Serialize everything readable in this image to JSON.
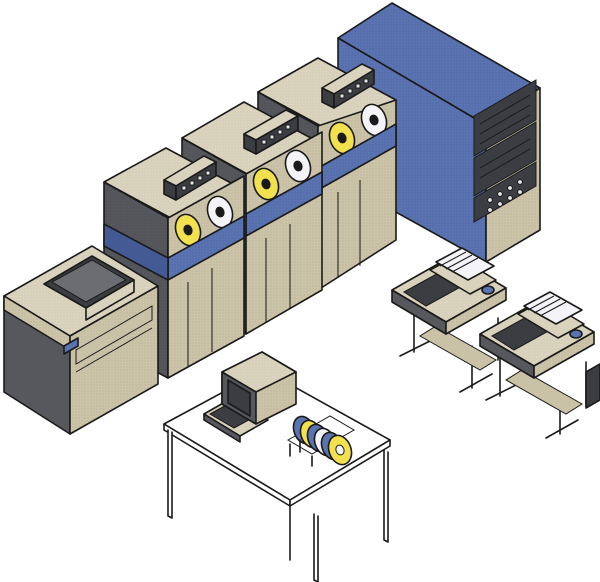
{
  "scene": {
    "background": "#ffffff",
    "colors": {
      "cabinet_front": "#c9c2a6",
      "cabinet_top": "#d9d3bd",
      "cabinet_side": "#56585e",
      "panel_blue": "#5a73b1",
      "panel_blue_light": "#7f93c7",
      "reel_yellow": "#f2e04e",
      "reel_white": "#f4f4f8",
      "rack_dark": "#3b3d43",
      "desk": "#ffffff"
    },
    "objects": [
      {
        "name": "card-reader-console",
        "icon": "card-reader-icon"
      },
      {
        "name": "tape-drive-1",
        "icon": "tape-drive-icon"
      },
      {
        "name": "tape-drive-2",
        "icon": "tape-drive-icon"
      },
      {
        "name": "tape-drive-3",
        "icon": "tape-drive-icon"
      },
      {
        "name": "mainframe-cabinet",
        "icon": "mainframe-icon"
      },
      {
        "name": "teleprinter-1",
        "icon": "teletype-icon"
      },
      {
        "name": "teleprinter-2",
        "icon": "teletype-icon"
      },
      {
        "name": "terminal-desk",
        "icon": "desk-icon"
      },
      {
        "name": "crt-terminal",
        "icon": "crt-terminal-icon"
      },
      {
        "name": "tape-reel-rack",
        "icon": "tape-reel-rack-icon"
      }
    ]
  }
}
